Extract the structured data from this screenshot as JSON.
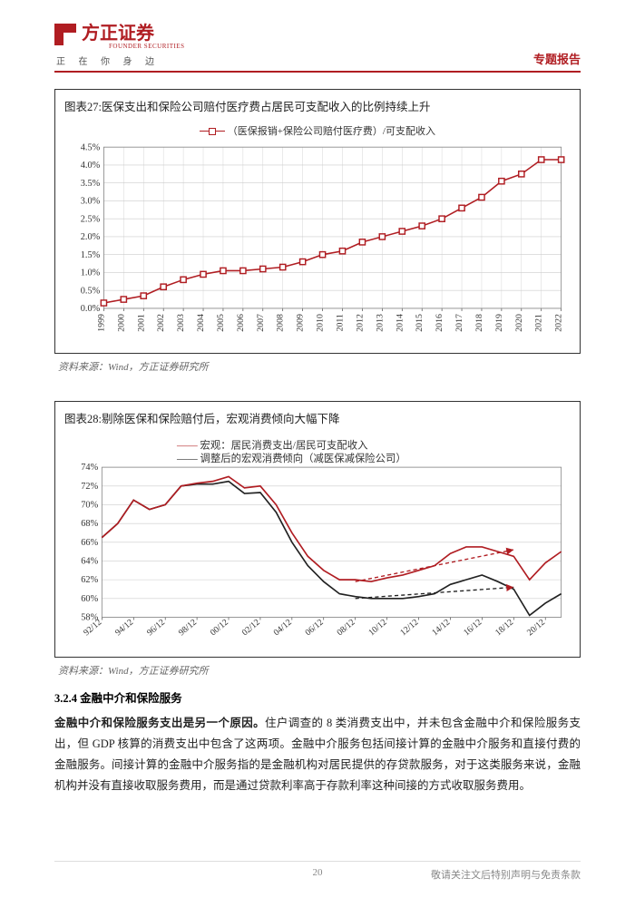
{
  "header": {
    "logo_text": "方正证券",
    "logo_sub": "FOUNDER SECURITIES",
    "tagline": "正 在 你 身 边",
    "report_type": "专题报告"
  },
  "chart27": {
    "title": "图表27:医保支出和保险公司赔付医疗费占居民可支配收入的比例持续上升",
    "legend": "（医保报销+保险公司赔付医疗费）/可支配收入",
    "series_color": "#b01d22",
    "bg_color": "#ffffff",
    "grid_color": "#cccccc",
    "x_labels": [
      "1999",
      "2000",
      "2001",
      "2002",
      "2003",
      "2004",
      "2005",
      "2006",
      "2007",
      "2008",
      "2009",
      "2010",
      "2011",
      "2012",
      "2013",
      "2014",
      "2015",
      "2016",
      "2017",
      "2018",
      "2019",
      "2020",
      "2021",
      "2022"
    ],
    "y_ticks": [
      0,
      0.5,
      1.0,
      1.5,
      2.0,
      2.5,
      3.0,
      3.5,
      4.0,
      4.5
    ],
    "y_tick_labels": [
      "0.0%",
      "0.5%",
      "1.0%",
      "1.5%",
      "2.0%",
      "2.5%",
      "3.0%",
      "3.5%",
      "4.0%",
      "4.5%"
    ],
    "values": [
      0.15,
      0.25,
      0.35,
      0.6,
      0.8,
      0.95,
      1.05,
      1.05,
      1.1,
      1.15,
      1.3,
      1.5,
      1.6,
      1.85,
      2.0,
      2.15,
      2.3,
      2.5,
      2.8,
      3.1,
      3.55,
      3.75,
      4.15,
      4.15
    ],
    "ylim": [
      0,
      4.5
    ]
  },
  "source27": "资料来源：Wind，方正证券研究所",
  "chart28": {
    "title": "图表28:剔除医保和保险赔付后，宏观消费倾向大幅下降",
    "legend1": "宏观：居民消费支出/居民可支配收入",
    "legend2": "调整后的宏观消费倾向（减医保减保险公司）",
    "color1": "#b01d22",
    "color2": "#222222",
    "grid_color": "#cccccc",
    "x_labels": [
      "92/12",
      "94/12",
      "96/12",
      "98/12",
      "00/12",
      "02/12",
      "04/12",
      "06/12",
      "08/12",
      "10/12",
      "12/12",
      "14/12",
      "16/12",
      "18/12",
      "20/12"
    ],
    "y_ticks": [
      58,
      60,
      62,
      64,
      66,
      68,
      70,
      72,
      74
    ],
    "y_tick_labels": [
      "58%",
      "60%",
      "62%",
      "64%",
      "66%",
      "68%",
      "70%",
      "72%",
      "74%"
    ],
    "series1": [
      66.5,
      68.0,
      70.5,
      69.5,
      70.0,
      72.0,
      72.3,
      72.5,
      73.0,
      71.8,
      72.0,
      70.0,
      67.0,
      64.5,
      63.0,
      62.0,
      62.0,
      61.8,
      62.2,
      62.5,
      63.0,
      63.5,
      64.8,
      65.5,
      65.5,
      65.0,
      64.5,
      62.0,
      63.8,
      65.0
    ],
    "series2": [
      66.5,
      68.0,
      70.5,
      69.5,
      70.0,
      72.0,
      72.2,
      72.2,
      72.5,
      71.2,
      71.3,
      69.2,
      66.0,
      63.5,
      61.8,
      60.5,
      60.2,
      60.0,
      60.0,
      60.0,
      60.2,
      60.5,
      61.5,
      62.0,
      62.5,
      61.8,
      61.0,
      58.2,
      59.5,
      60.5
    ],
    "ylim": [
      58,
      74
    ],
    "n_points": 30,
    "arrow_color": "#b01d22"
  },
  "source28": "资料来源：Wind，方正证券研究所",
  "section": {
    "num": "3.2.4",
    "title": "金融中介和保险服务"
  },
  "body": {
    "bold_lead": "金融中介和保险服务支出是另一个原因。",
    "rest": "住户调查的 8 类消费支出中，并未包含金融中介和保险服务支出，但 GDP 核算的消费支出中包含了这两项。金融中介服务包括间接计算的金融中介服务和直接付费的金融服务。间接计算的金融中介服务指的是金融机构对居民提供的存贷款服务，对于这类服务来说，金融机构并没有直接收取服务费用，而是通过贷款利率高于存款利率这种间接的方式收取服务费用。"
  },
  "footer": {
    "page": "20",
    "disclaimer": "敬请关注文后特别声明与免责条款"
  }
}
